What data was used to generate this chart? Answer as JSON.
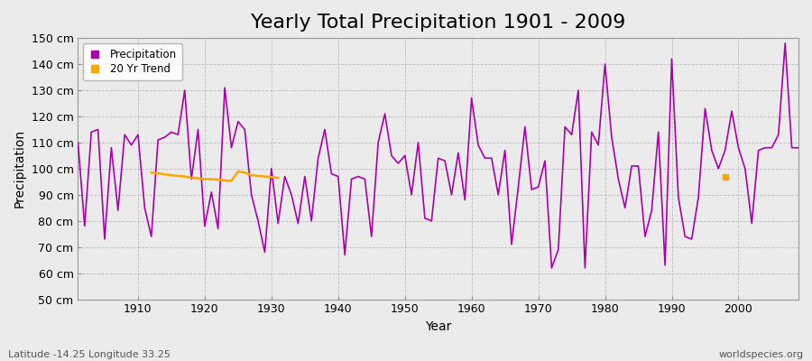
{
  "title": "Yearly Total Precipitation 1901 - 2009",
  "xlabel": "Year",
  "ylabel": "Precipitation",
  "subtitle": "Latitude -14.25 Longitude 33.25",
  "watermark": "worldspecies.org",
  "years": [
    1901,
    1902,
    1903,
    1904,
    1905,
    1906,
    1907,
    1908,
    1909,
    1910,
    1911,
    1912,
    1913,
    1914,
    1915,
    1916,
    1917,
    1918,
    1919,
    1920,
    1921,
    1922,
    1923,
    1924,
    1925,
    1926,
    1927,
    1928,
    1929,
    1930,
    1931,
    1932,
    1933,
    1934,
    1935,
    1936,
    1937,
    1938,
    1939,
    1940,
    1941,
    1942,
    1943,
    1944,
    1945,
    1946,
    1947,
    1948,
    1949,
    1950,
    1951,
    1952,
    1953,
    1954,
    1955,
    1956,
    1957,
    1958,
    1959,
    1960,
    1961,
    1962,
    1963,
    1964,
    1965,
    1966,
    1967,
    1968,
    1969,
    1970,
    1971,
    1972,
    1973,
    1974,
    1975,
    1976,
    1977,
    1978,
    1979,
    1980,
    1981,
    1982,
    1983,
    1984,
    1985,
    1986,
    1987,
    1988,
    1989,
    1990,
    1991,
    1992,
    1993,
    1994,
    1995,
    1996,
    1997,
    1998,
    1999,
    2000,
    2001,
    2002,
    2003,
    2004,
    2005,
    2006,
    2007,
    2008,
    2009
  ],
  "precipitation": [
    110,
    78,
    114,
    115,
    73,
    108,
    84,
    113,
    109,
    113,
    85,
    74,
    111,
    112,
    114,
    113,
    130,
    96,
    115,
    78,
    91,
    77,
    131,
    108,
    118,
    115,
    90,
    80,
    68,
    100,
    79,
    97,
    90,
    79,
    97,
    80,
    104,
    115,
    98,
    97,
    67,
    96,
    97,
    96,
    74,
    110,
    121,
    105,
    102,
    105,
    90,
    110,
    81,
    80,
    104,
    103,
    90,
    106,
    88,
    127,
    109,
    104,
    104,
    90,
    107,
    71,
    93,
    116,
    92,
    93,
    103,
    62,
    69,
    116,
    113,
    130,
    62,
    114,
    109,
    140,
    112,
    96,
    85,
    101,
    101,
    74,
    84,
    114,
    63,
    142,
    89,
    74,
    73,
    89,
    123,
    107,
    100,
    107,
    122,
    108,
    100,
    79,
    107,
    108,
    108,
    113,
    148,
    108,
    108
  ],
  "trend_years": [
    1912,
    1913,
    1914,
    1915,
    1916,
    1917,
    1918,
    1919,
    1920,
    1921,
    1922,
    1923,
    1924,
    1925,
    1926,
    1927,
    1928,
    1929,
    1930,
    1931
  ],
  "trend_values": [
    98.5,
    98.2,
    97.8,
    97.5,
    97.2,
    97.0,
    96.5,
    96.3,
    96.0,
    96.0,
    95.8,
    95.5,
    95.3,
    99.0,
    98.5,
    97.5,
    97.2,
    97.0,
    96.8,
    96.5
  ],
  "trend_dot_year": 1998,
  "trend_dot_value": 97,
  "precip_color": "#AA00AA",
  "trend_color": "#FFA500",
  "bg_color": "#EBEBEB",
  "plot_bg_color": "#EBEBEB",
  "grid_color": "#BBBBBB",
  "ylim": [
    50,
    150
  ],
  "yticks": [
    50,
    60,
    70,
    80,
    90,
    100,
    110,
    120,
    130,
    140,
    150
  ],
  "xticks": [
    1910,
    1920,
    1930,
    1940,
    1950,
    1960,
    1970,
    1980,
    1990,
    2000
  ],
  "title_fontsize": 16,
  "label_fontsize": 10,
  "tick_fontsize": 9,
  "line_width": 1.2
}
